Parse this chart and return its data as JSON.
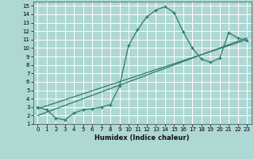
{
  "xlabel": "Humidex (Indice chaleur)",
  "bg_color": "#aed8d4",
  "grid_color": "#ffffff",
  "line_color": "#2d7a6e",
  "xlim": [
    -0.5,
    23.5
  ],
  "ylim": [
    1,
    15.5
  ],
  "xticks": [
    0,
    1,
    2,
    3,
    4,
    5,
    6,
    7,
    8,
    9,
    10,
    11,
    12,
    13,
    14,
    15,
    16,
    17,
    18,
    19,
    20,
    21,
    22,
    23
  ],
  "yticks": [
    1,
    2,
    3,
    4,
    5,
    6,
    7,
    8,
    9,
    10,
    11,
    12,
    13,
    14,
    15
  ],
  "curve_x": [
    0,
    1,
    2,
    3,
    4,
    5,
    6,
    7,
    8,
    9,
    10,
    11,
    12,
    13,
    14,
    15,
    16,
    17,
    18,
    19,
    20,
    21,
    22,
    23
  ],
  "curve_y": [
    3.0,
    2.7,
    1.7,
    1.5,
    2.3,
    2.7,
    2.8,
    3.0,
    3.3,
    5.5,
    10.3,
    12.2,
    13.7,
    14.5,
    14.9,
    14.2,
    11.9,
    10.0,
    8.7,
    8.3,
    8.8,
    11.8,
    11.2,
    10.9
  ],
  "line2_x": [
    0,
    23
  ],
  "line2_y": [
    2.0,
    11.2
  ],
  "line3_x": [
    0,
    23
  ],
  "line3_y": [
    2.8,
    11.0
  ],
  "xlabel_fontsize": 6,
  "tick_fontsize": 5
}
